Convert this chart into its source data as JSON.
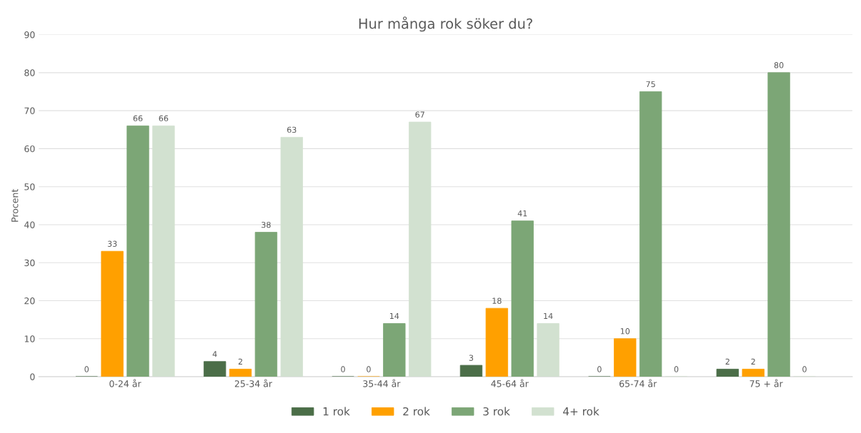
{
  "chart_data": {
    "type": "bar",
    "title": "Hur många rok söker du?",
    "ylabel": "Procent",
    "categories": [
      "0-24 år",
      "25-34 år",
      "35-44 år",
      "45-64 år",
      "65-74 år",
      "75 + år"
    ],
    "series": [
      {
        "name": "1 rok",
        "color": "#4b6e48",
        "values": [
          0,
          4,
          0,
          3,
          0,
          2
        ]
      },
      {
        "name": "2 rok",
        "color": "#ffa000",
        "values": [
          33,
          2,
          0,
          18,
          10,
          2
        ]
      },
      {
        "name": "3 rok",
        "color": "#7ca676",
        "values": [
          66,
          38,
          14,
          41,
          75,
          80
        ]
      },
      {
        "name": "4+ rok",
        "color": "#d2e1d0",
        "values": [
          66,
          63,
          67,
          14,
          0,
          0
        ]
      }
    ],
    "ylim": [
      0,
      90
    ],
    "yticks": [
      0,
      10,
      20,
      30,
      40,
      50,
      60,
      70,
      80,
      90
    ],
    "grid": "y",
    "legend": "bottom",
    "data_labels": true
  }
}
